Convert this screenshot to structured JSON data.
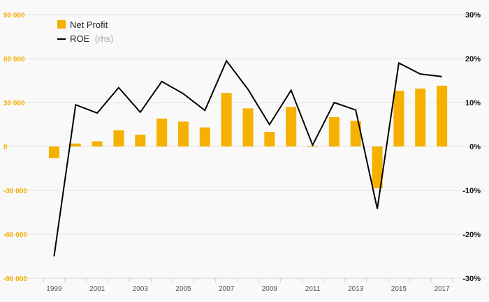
{
  "chart_data": {
    "type": "bar",
    "categories": [
      "1999",
      "2000",
      "2001",
      "2002",
      "2003",
      "2004",
      "2005",
      "2006",
      "2007",
      "2008",
      "2009",
      "2010",
      "2011",
      "2012",
      "2013",
      "2014",
      "2015",
      "2016",
      "2017"
    ],
    "x_tick_labels": [
      "1999",
      "2001",
      "2003",
      "2005",
      "2007",
      "2009",
      "2011",
      "2013",
      "2015",
      "2017"
    ],
    "series": [
      {
        "name": "Net Profit",
        "type": "bar",
        "axis": "left",
        "values": [
          -8000,
          2000,
          3500,
          11000,
          8000,
          19000,
          17000,
          13000,
          36500,
          26000,
          10000,
          27000,
          500,
          20000,
          17500,
          -28500,
          38000,
          39500,
          41500
        ]
      },
      {
        "name": "ROE",
        "type": "line",
        "axis": "right",
        "values": [
          -25.0,
          9.5,
          7.6,
          13.4,
          7.8,
          14.8,
          12.0,
          8.2,
          19.5,
          13.0,
          5.0,
          12.8,
          0.3,
          10.0,
          8.3,
          -14.2,
          19.0,
          16.5,
          15.9
        ]
      }
    ],
    "y_left": {
      "ylim": [
        -90000,
        90000
      ],
      "ticks": [
        "90 000",
        "60 000",
        "30 000",
        "0",
        "-30 000",
        "-60 000",
        "-90 000"
      ]
    },
    "y_right": {
      "ylim": [
        -30,
        30
      ],
      "ticks": [
        "30%",
        "20%",
        "10%",
        "0%",
        "-10%",
        "-20%",
        "-30%"
      ]
    },
    "grid": true,
    "legend": {
      "placement": "top-left",
      "items": [
        {
          "label": "Net Profit",
          "suffix": ""
        },
        {
          "label": "ROE",
          "suffix": "(rhs)"
        }
      ]
    },
    "colors": {
      "bar": "#f5b000",
      "line": "#000000",
      "left_tick_text": "#f5b000",
      "right_tick_text": "#111111"
    }
  }
}
